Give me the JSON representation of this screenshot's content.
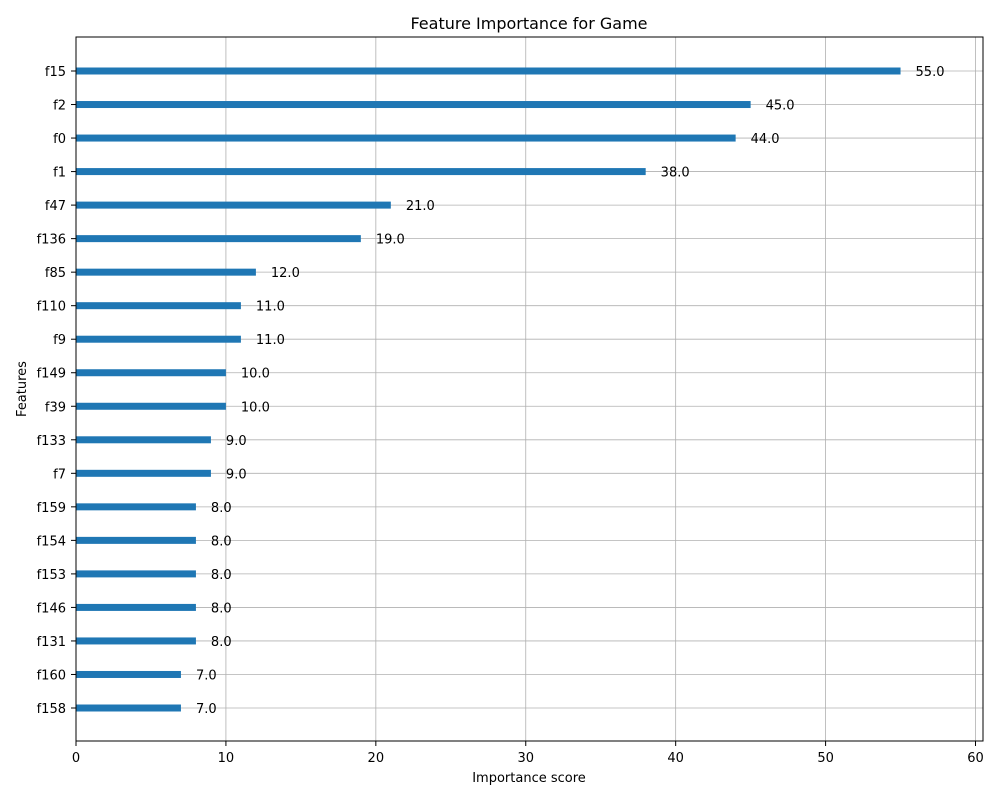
{
  "chart_data": {
    "type": "bar",
    "orientation": "horizontal",
    "title": "Feature Importance for Game",
    "xlabel": "Importance score",
    "ylabel": "Features",
    "xlim": [
      0,
      60.5
    ],
    "xticks": [
      0,
      10,
      20,
      30,
      40,
      50,
      60
    ],
    "grid": true,
    "bar_color": "#1f77b4",
    "categories": [
      "f15",
      "f2",
      "f0",
      "f1",
      "f47",
      "f136",
      "f85",
      "f110",
      "f9",
      "f149",
      "f39",
      "f133",
      "f7",
      "f159",
      "f154",
      "f153",
      "f146",
      "f131",
      "f160",
      "f158"
    ],
    "values": [
      55,
      45,
      44,
      38,
      21,
      19,
      12,
      11,
      11,
      10,
      10,
      9,
      9,
      8,
      8,
      8,
      8,
      8,
      7,
      7
    ],
    "value_labels": [
      "55.0",
      "45.0",
      "44.0",
      "38.0",
      "21.0",
      "19.0",
      "12.0",
      "11.0",
      "11.0",
      "10.0",
      "10.0",
      "9.0",
      "9.0",
      "8.0",
      "8.0",
      "8.0",
      "8.0",
      "8.0",
      "7.0",
      "7.0"
    ]
  }
}
